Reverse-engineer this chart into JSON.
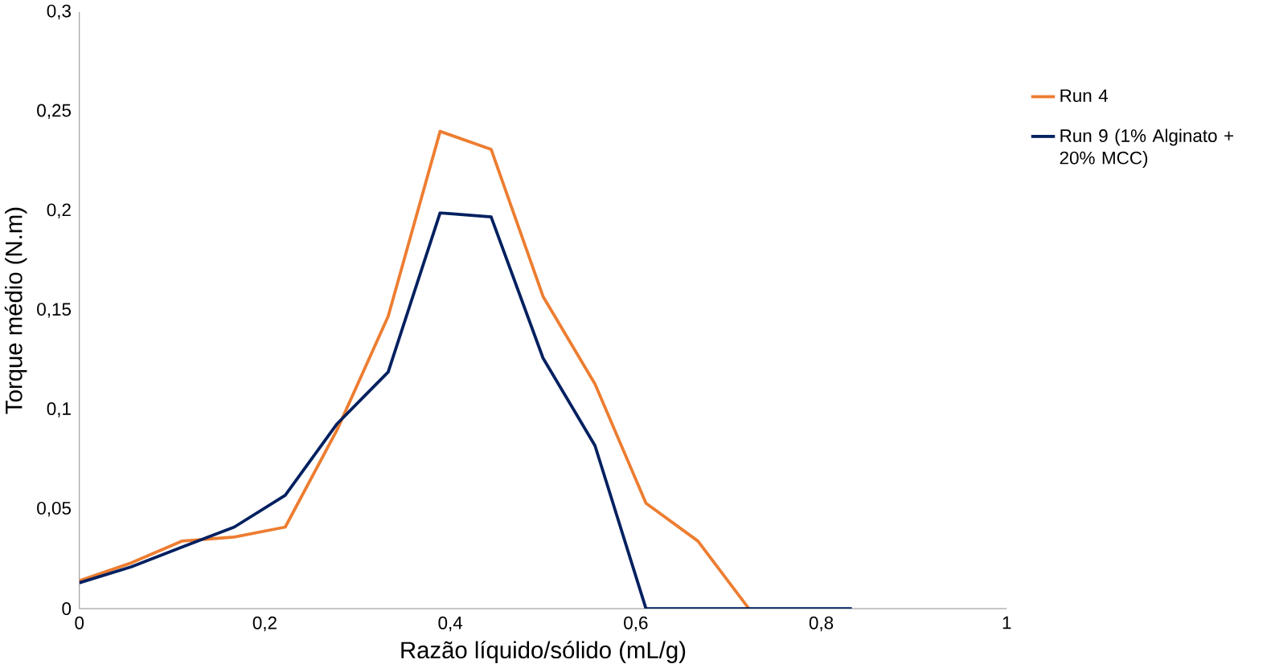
{
  "chart_data": {
    "type": "line",
    "xlabel": "Razão líquido/sólido (mL/g)",
    "ylabel": "Torque médio (N.m)",
    "xlim": [
      0,
      1
    ],
    "ylim": [
      0,
      0.3
    ],
    "xticks": [
      0,
      {
        "value": 0.2,
        "label": "0,2"
      },
      {
        "value": 0.4,
        "label": "0,4"
      },
      {
        "value": 0.6,
        "label": "0,6"
      },
      {
        "value": 0.8,
        "label": "0,8"
      },
      1
    ],
    "yticks": [
      0,
      {
        "value": 0.05,
        "label": "0,05"
      },
      {
        "value": 0.1,
        "label": "0,1"
      },
      {
        "value": 0.15,
        "label": "0,15"
      },
      {
        "value": 0.2,
        "label": "0,2"
      },
      {
        "value": 0.25,
        "label": "0,25"
      },
      {
        "value": 0.3,
        "label": "0,3"
      }
    ],
    "grid": false,
    "legend": "right",
    "marker": "none",
    "line_style": "solid",
    "series": [
      {
        "name": "Run 4",
        "color": "#ed7d31",
        "x": [
          0,
          0.056,
          0.111,
          0.167,
          0.222,
          0.278,
          0.333,
          0.389,
          0.444,
          0.5,
          0.556,
          0.611,
          0.667,
          0.722
        ],
        "values": [
          0.014,
          0.023,
          0.034,
          0.036,
          0.041,
          0.09,
          0.147,
          0.24,
          0.231,
          0.157,
          0.113,
          0.053,
          0.034,
          0
        ]
      },
      {
        "name": "Run 9 (1% Alginato + 20% MCC)",
        "color": "#002060",
        "x": [
          0,
          0.056,
          0.111,
          0.167,
          0.222,
          0.278,
          0.333,
          0.389,
          0.444,
          0.5,
          0.556,
          0.611,
          0.667,
          0.722,
          0.778,
          0.833
        ],
        "values": [
          0.013,
          0.021,
          0.031,
          0.041,
          0.057,
          0.093,
          0.119,
          0.199,
          0.197,
          0.126,
          0.082,
          0,
          0,
          0,
          0,
          0
        ]
      }
    ]
  }
}
